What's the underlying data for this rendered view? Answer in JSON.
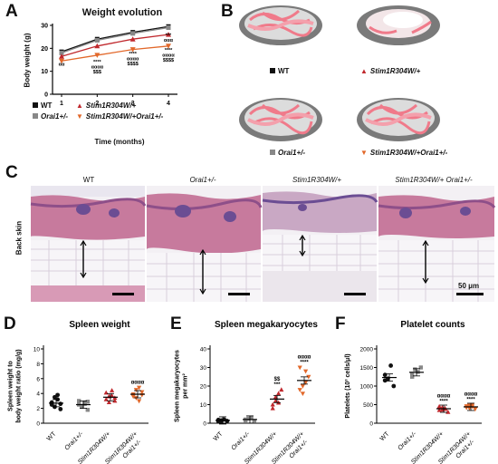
{
  "panels": {
    "A": "A",
    "B": "B",
    "C": "C",
    "D": "D",
    "E": "E",
    "F": "F"
  },
  "panel_A": {
    "title": "Weight evolution",
    "ylabel": "Body weight (g)",
    "xlabel": "Time (months)",
    "yticks": [
      "0",
      "10",
      "20",
      "30"
    ],
    "xticks": [
      "1",
      "2",
      "3",
      "4"
    ],
    "legend": [
      {
        "label": "WT",
        "color": "#111111",
        "marker": "square"
      },
      {
        "label": "Orai1+/-",
        "color": "#888888",
        "marker": "square"
      },
      {
        "label": "Stim1R304W/+",
        "color": "#c0282d",
        "marker": "triangle-up"
      },
      {
        "label": "Stim1R304W/+Orai1+/-",
        "color": "#e2682a",
        "marker": "triangle-down"
      }
    ],
    "annot_m1": [
      "αα"
    ],
    "annot_m2": [
      "****",
      "αααα",
      "$$$"
    ],
    "annot_m3": [
      "****",
      "αααα",
      "$$$$"
    ],
    "annot_m4_upper": [
      "***",
      "ααα"
    ],
    "annot_m4": [
      "****",
      "αααα",
      "$$$$"
    ]
  },
  "chart_data": [
    {
      "type": "line",
      "title": "Weight evolution",
      "xlabel": "Time (months)",
      "ylabel": "Body weight (g)",
      "x": [
        1,
        2,
        3,
        4
      ],
      "ylim": [
        0,
        30
      ],
      "series": [
        {
          "name": "WT",
          "values": [
            18.5,
            24,
            27,
            29.5
          ],
          "color": "#111111"
        },
        {
          "name": "Orai1+/-",
          "values": [
            18,
            23.5,
            26.5,
            29
          ],
          "color": "#888888"
        },
        {
          "name": "Stim1R304W/+",
          "values": [
            16.5,
            21,
            24,
            26
          ],
          "color": "#c0282d"
        },
        {
          "name": "Stim1R304W/+Orai1+/-",
          "values": [
            14.5,
            17,
            19.5,
            21
          ],
          "color": "#e2682a"
        }
      ]
    },
    {
      "type": "scatter",
      "title": "Spleen weight",
      "ylabel": "Spleen weight to body weight ratio (mg/g)",
      "categories": [
        "WT",
        "Orai1+/-",
        "Stim1R304W/+",
        "Stim1R304W/+ Orai1+/-"
      ],
      "ylim": [
        0,
        10
      ],
      "yticks": [
        "0",
        "2",
        "4",
        "6",
        "8",
        "10"
      ],
      "means": [
        2.7,
        2.5,
        3.5,
        3.9
      ],
      "points": [
        [
          2.8,
          2.2,
          3.2,
          1.9,
          2.5,
          3.5,
          3.8,
          2.6
        ],
        [
          2.5,
          2.2,
          2.8,
          1.8,
          3.0,
          2.3,
          2.6,
          2.9
        ],
        [
          3.2,
          3.6,
          4.4,
          3.0,
          4.1,
          2.8,
          3.7,
          3.4
        ],
        [
          3.9,
          3.4,
          4.8,
          4.2,
          3.6,
          4.5,
          3.0,
          3.8
        ]
      ],
      "annotations": [
        "",
        "",
        "",
        "αααα"
      ]
    },
    {
      "type": "scatter",
      "title": "Spleen megakaryocytes",
      "ylabel": "Spleen megakaryocytes per mm²",
      "categories": [
        "WT",
        "Orai1+/-",
        "Stim1R304W/+",
        "Stim1R304W/+ Orai1+/-"
      ],
      "ylim": [
        0,
        40
      ],
      "yticks": [
        "0",
        "10",
        "20",
        "30",
        "40"
      ],
      "means": [
        1.5,
        2,
        13,
        23
      ],
      "points": [
        [
          1,
          1.5,
          2,
          1.2,
          1.8,
          1
        ],
        [
          1.5,
          2.5,
          3,
          1.2,
          2
        ],
        [
          8,
          12,
          16,
          18,
          10,
          14,
          11
        ],
        [
          18,
          20,
          28,
          25,
          30,
          16,
          22
        ]
      ],
      "annotations": [
        "",
        "",
        "$$\n***",
        "αααα\n****"
      ]
    },
    {
      "type": "scatter",
      "title": "Platelet counts",
      "ylabel": "Platelets (10³ cells/μl)",
      "categories": [
        "WT",
        "Orai1+/-",
        "Stim1R304W/+",
        "Stim1R304W/+ Orai1+/-"
      ],
      "ylim": [
        0,
        2000
      ],
      "yticks": [
        "0",
        "500",
        "1000",
        "1500",
        "2000"
      ],
      "means": [
        1230,
        1370,
        390,
        440
      ],
      "points": [
        [
          1300,
          1200,
          1550,
          1000,
          1150
        ],
        [
          1300,
          1450,
          1380,
          1500,
          1250
        ],
        [
          350,
          420,
          380,
          300,
          450,
          360,
          400
        ],
        [
          420,
          480,
          500,
          380,
          460,
          410,
          450
        ]
      ],
      "annotations": [
        "",
        "",
        "αααα\n****",
        "αααα\n****"
      ]
    }
  ],
  "panel_B": {
    "legend": [
      "WT",
      "Stim1R304W/+",
      "Orai1+/-",
      "Stim1R304W/+Orai1+/-"
    ]
  },
  "panel_C": {
    "columns": [
      "WT",
      "Orai1+/-",
      "Stim1R304W/+",
      "Stim1R304W/+ Orai1+/-"
    ],
    "row_label": "Back skin",
    "scale": "50 μm"
  },
  "colors": {
    "wt": "#111111",
    "orai": "#888888",
    "stim": "#c0282d",
    "double": "#e2682a",
    "skin": "#d98aa6"
  }
}
